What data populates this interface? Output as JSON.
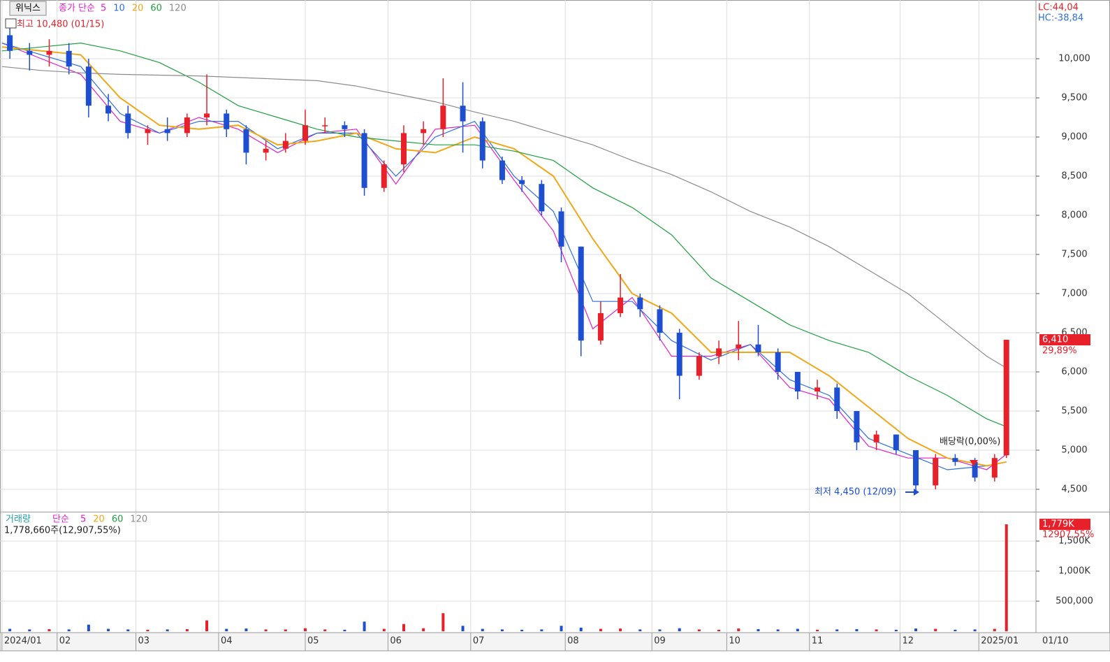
{
  "chart_data": [
    {
      "type": "candlestick",
      "stock_name": "위닉스",
      "legend_title": "종가 단순",
      "x": [
        2,
        7,
        12,
        17,
        22,
        27,
        32,
        37,
        42,
        47,
        52,
        57,
        62,
        67,
        72,
        77,
        82,
        87,
        92,
        97,
        102,
        107,
        112,
        117,
        122,
        127,
        132,
        137,
        142,
        147,
        152,
        157,
        162,
        167,
        172,
        177,
        182,
        187,
        192,
        197,
        202,
        207,
        212,
        217,
        222,
        227,
        232,
        237,
        242,
        247,
        252,
        255
      ],
      "open": [
        10300,
        10100,
        10050,
        10100,
        9900,
        9400,
        9300,
        9050,
        9100,
        9050,
        9250,
        9300,
        9100,
        8800,
        8850,
        8950,
        9150,
        9150,
        9050,
        8350,
        8650,
        9050,
        9100,
        9400,
        9200,
        8700,
        8450,
        8400,
        8050,
        7600,
        6400,
        6750,
        6950,
        6800,
        6500,
        5950,
        6200,
        6300,
        6350,
        6250,
        6000,
        5750,
        5800,
        5500,
        5100,
        5200,
        5000,
        4550,
        4900,
        4850,
        4650,
        4935
      ],
      "high": [
        10480,
        10200,
        10250,
        10200,
        10000,
        9550,
        9400,
        9150,
        9250,
        9300,
        9800,
        9350,
        9150,
        8950,
        9050,
        9350,
        9250,
        9200,
        9100,
        8700,
        9150,
        9200,
        9750,
        9700,
        9250,
        8750,
        8500,
        8450,
        8100,
        7600,
        6900,
        7250,
        7000,
        6850,
        6550,
        6250,
        6400,
        6650,
        6600,
        6300,
        6000,
        5900,
        5850,
        5500,
        5250,
        5200,
        5000,
        4950,
        4950,
        4900,
        4950,
        6410
      ],
      "low": [
        10000,
        9850,
        9900,
        9800,
        9250,
        9200,
        8980,
        8900,
        8950,
        9000,
        9150,
        9000,
        8650,
        8700,
        8800,
        8900,
        9050,
        9000,
        8250,
        8300,
        8550,
        8900,
        9000,
        8800,
        8600,
        8400,
        8300,
        8000,
        7400,
        6200,
        6350,
        6700,
        6700,
        6400,
        5650,
        5900,
        6100,
        6150,
        6200,
        5900,
        5650,
        5650,
        5400,
        5000,
        5000,
        4950,
        4450,
        4500,
        4800,
        4600,
        4600,
        4900
      ],
      "close": [
        10100,
        10050,
        10100,
        9900,
        9400,
        9300,
        9050,
        9100,
        9050,
        9250,
        9300,
        9100,
        8800,
        8850,
        8950,
        9150,
        9150,
        9100,
        8350,
        8650,
        9050,
        9100,
        9400,
        9200,
        8700,
        8450,
        8400,
        8050,
        7600,
        6400,
        6750,
        6950,
        6800,
        6500,
        5950,
        6200,
        6300,
        6350,
        6250,
        6000,
        5750,
        5800,
        5500,
        5100,
        5200,
        5000,
        4550,
        4900,
        4850,
        4650,
        4900,
        6410
      ],
      "up_color": "#e8202a",
      "down_color": "#1e4fd0",
      "ylim": [
        4214,
        10750
      ],
      "yticks": [
        {
          "value": 4500,
          "label": "4,500"
        },
        {
          "value": 5000,
          "label": "5,000"
        },
        {
          "value": 5500,
          "label": "5,500"
        },
        {
          "value": 6000,
          "label": "6,000"
        },
        {
          "value": 6500,
          "label": "6,500"
        },
        {
          "value": 7000,
          "label": "7,000"
        },
        {
          "value": 7500,
          "label": "7,500"
        },
        {
          "value": 8000,
          "label": "8,000"
        },
        {
          "value": 8500,
          "label": "8,500"
        },
        {
          "value": 9000,
          "label": "9,000"
        },
        {
          "value": 9500,
          "label": "9,500"
        },
        {
          "value": 10000,
          "label": "10,000"
        }
      ],
      "xlim": [
        -0.5,
        262.5
      ],
      "xticks": [
        {
          "value": 0,
          "label": "2024/01"
        },
        {
          "value": 14,
          "label": "02"
        },
        {
          "value": 34,
          "label": "03"
        },
        {
          "value": 55,
          "label": "04"
        },
        {
          "value": 77,
          "label": "05"
        },
        {
          "value": 98,
          "label": "06"
        },
        {
          "value": 119,
          "label": "07"
        },
        {
          "value": 143,
          "label": "08"
        },
        {
          "value": 165,
          "label": "09"
        },
        {
          "value": 184,
          "label": "10"
        },
        {
          "value": 205,
          "label": "11"
        },
        {
          "value": 228,
          "label": "12"
        },
        {
          "value": 248,
          "label": "2025/01"
        }
      ],
      "cursor_date": "01/10",
      "grid": true,
      "series": [
        {
          "name": "5",
          "color": "#e020c8",
          "x": [
            0,
            10,
            20,
            30,
            40,
            50,
            60,
            70,
            80,
            90,
            100,
            110,
            120,
            130,
            140,
            150,
            160,
            170,
            180,
            190,
            200,
            210,
            220,
            230,
            240,
            250,
            255
          ],
          "values": [
            10200,
            10000,
            9800,
            9200,
            9050,
            9250,
            9100,
            8800,
            9050,
            9100,
            8400,
            9100,
            9150,
            8450,
            7800,
            6550,
            6950,
            6200,
            6200,
            6350,
            5800,
            5650,
            5050,
            4900,
            4900,
            4750,
            4950
          ]
        },
        {
          "name": "10",
          "color": "#2f6fe0",
          "x": [
            0,
            10,
            20,
            30,
            40,
            50,
            60,
            70,
            80,
            90,
            100,
            110,
            120,
            130,
            140,
            150,
            160,
            170,
            180,
            190,
            200,
            210,
            220,
            230,
            240,
            250,
            255
          ],
          "values": [
            10200,
            10050,
            9900,
            9300,
            9050,
            9200,
            9200,
            8850,
            9050,
            9050,
            8500,
            9000,
            9200,
            8500,
            8050,
            6900,
            6900,
            6400,
            6150,
            6350,
            5900,
            5700,
            5150,
            4950,
            4750,
            4800,
            4850
          ]
        },
        {
          "name": "20",
          "color": "#f0a818",
          "x": [
            0,
            10,
            20,
            30,
            40,
            50,
            60,
            70,
            80,
            90,
            100,
            110,
            120,
            130,
            140,
            150,
            160,
            170,
            180,
            190,
            200,
            210,
            220,
            230,
            240,
            250,
            255
          ],
          "values": [
            10150,
            10100,
            10050,
            9500,
            9150,
            9100,
            9150,
            8900,
            8950,
            9050,
            8850,
            8800,
            9000,
            8850,
            8500,
            7700,
            7000,
            6750,
            6250,
            6250,
            6250,
            5950,
            5550,
            5150,
            4900,
            4800,
            4850
          ]
        },
        {
          "name": "60",
          "color": "#20a040",
          "x": [
            0,
            10,
            20,
            30,
            40,
            50,
            60,
            70,
            80,
            90,
            100,
            110,
            120,
            130,
            140,
            150,
            160,
            170,
            180,
            190,
            200,
            210,
            220,
            230,
            240,
            250,
            255
          ],
          "values": [
            10100,
            10150,
            10200,
            10100,
            9950,
            9700,
            9400,
            9250,
            9100,
            9000,
            8950,
            8900,
            8900,
            8820,
            8700,
            8350,
            8100,
            7750,
            7200,
            6900,
            6600,
            6400,
            6250,
            5950,
            5700,
            5400,
            5300
          ]
        },
        {
          "name": "120",
          "color": "#8c8c8c",
          "x": [
            0,
            10,
            20,
            30,
            40,
            50,
            60,
            70,
            80,
            90,
            100,
            110,
            120,
            130,
            140,
            150,
            160,
            170,
            180,
            190,
            200,
            210,
            220,
            230,
            240,
            250,
            255
          ],
          "values": [
            9900,
            9850,
            9820,
            9800,
            9790,
            9780,
            9760,
            9740,
            9720,
            9650,
            9550,
            9450,
            9320,
            9200,
            9050,
            8900,
            8700,
            8520,
            8300,
            8050,
            7850,
            7600,
            7300,
            7000,
            6600,
            6200,
            6050
          ]
        }
      ],
      "high_note": "최고 10,480 (01/15)",
      "low_note": "최저 4,450 (12/09)",
      "event_note": "배당락(0,00%)",
      "lc": "LC:44,04",
      "hc": "HC:-38,84",
      "last_price": {
        "value": 6410,
        "label": "6,410"
      },
      "change_label": "29,89%"
    },
    {
      "type": "bar",
      "legend_title": "거래량",
      "legend_sub": "단순",
      "legend_items": [
        {
          "name": "5",
          "color": "#e020c8"
        },
        {
          "name": "20",
          "color": "#f0a818"
        },
        {
          "name": "60",
          "color": "#20a040"
        },
        {
          "name": "120",
          "color": "#8c8c8c"
        }
      ],
      "info": "1,778,660주(12,907,55%)",
      "x": [
        2,
        7,
        12,
        17,
        22,
        27,
        32,
        37,
        42,
        47,
        52,
        57,
        62,
        67,
        72,
        77,
        82,
        87,
        92,
        97,
        102,
        107,
        112,
        117,
        122,
        127,
        132,
        137,
        142,
        147,
        152,
        157,
        162,
        167,
        172,
        177,
        182,
        187,
        192,
        197,
        202,
        207,
        212,
        217,
        222,
        227,
        232,
        237,
        242,
        247,
        252,
        255
      ],
      "values": [
        40000,
        30000,
        35000,
        30000,
        110000,
        40000,
        30000,
        25000,
        30000,
        35000,
        180000,
        40000,
        45000,
        30000,
        30000,
        50000,
        30000,
        25000,
        160000,
        40000,
        120000,
        50000,
        300000,
        90000,
        40000,
        30000,
        25000,
        30000,
        90000,
        60000,
        40000,
        45000,
        30000,
        30000,
        50000,
        30000,
        25000,
        45000,
        35000,
        30000,
        40000,
        25000,
        30000,
        35000,
        30000,
        25000,
        45000,
        40000,
        25000,
        30000,
        40000,
        1778660
      ],
      "ylim": [
        0,
        1977000
      ],
      "yticks": [
        {
          "value": 500000,
          "label": "500,000"
        },
        {
          "value": 1000000,
          "label": "1,000K"
        },
        {
          "value": 1500000,
          "label": "1,500K"
        }
      ],
      "last_volume": {
        "value": 1778660,
        "label": "1,779K"
      },
      "change_label": "12907,55%"
    }
  ]
}
